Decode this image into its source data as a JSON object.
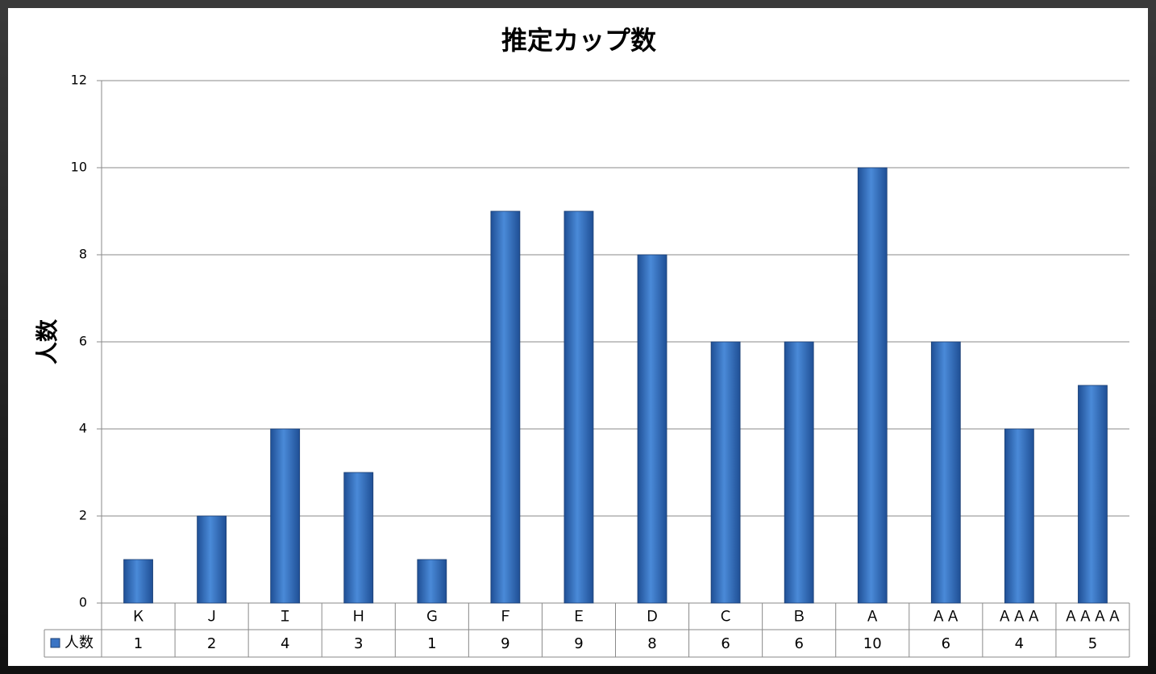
{
  "chart_data": {
    "type": "bar",
    "title": "推定カップ数",
    "y_label": "人数",
    "categories": [
      "Ｋ",
      "Ｊ",
      "Ｉ",
      "Ｈ",
      "Ｇ",
      "Ｆ",
      "Ｅ",
      "Ｄ",
      "Ｃ",
      "Ｂ",
      "Ａ",
      "ＡＡ",
      "ＡＡＡ",
      "ＡＡＡＡ"
    ],
    "series": [
      {
        "name": "人数",
        "color": "#3a74c4",
        "values": [
          1,
          2,
          4,
          3,
          1,
          9,
          9,
          8,
          6,
          6,
          10,
          6,
          4,
          5
        ]
      }
    ],
    "ylim": [
      0,
      12
    ],
    "yticks": [
      0,
      2,
      4,
      6,
      8,
      10,
      12
    ],
    "grid": true,
    "data_table": true
  }
}
